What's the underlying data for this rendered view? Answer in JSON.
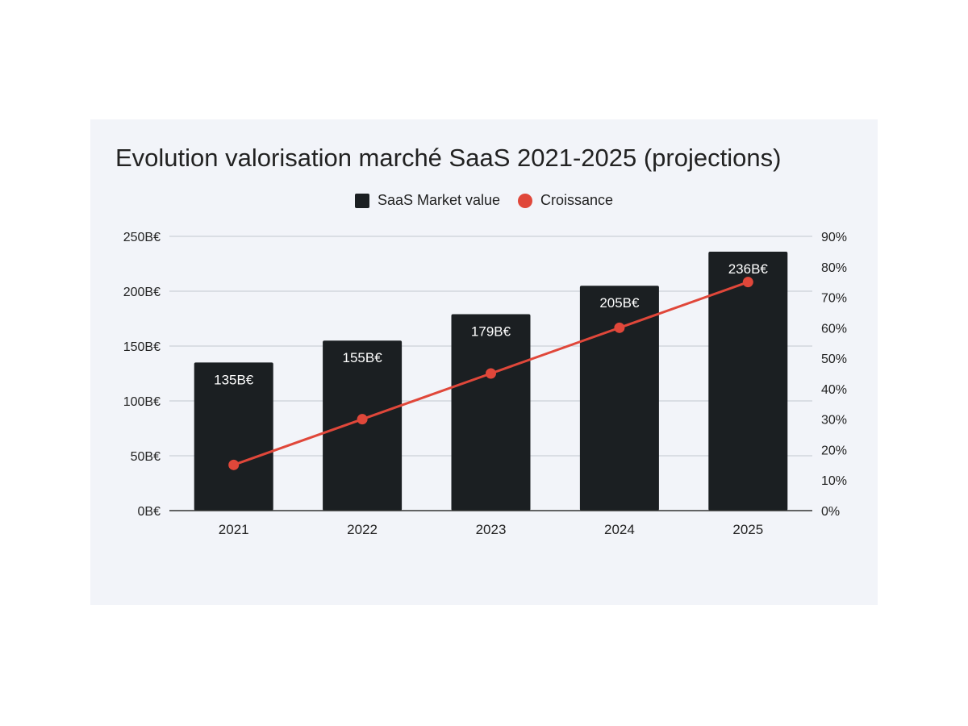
{
  "chart_data": {
    "type": "bar",
    "title": "Evolution valorisation marché SaaS 2021-2025 (projections)",
    "categories": [
      "2021",
      "2022",
      "2023",
      "2024",
      "2025"
    ],
    "series": [
      {
        "name": "SaaS Market value",
        "type": "bar",
        "axis": "left",
        "values": [
          135,
          155,
          179,
          205,
          236
        ],
        "data_labels": [
          "135B€",
          "155B€",
          "179B€",
          "205B€",
          "236B€"
        ],
        "color": "#1b1f22"
      },
      {
        "name": "Croissance",
        "type": "line",
        "axis": "right",
        "values": [
          15,
          30,
          45,
          60,
          75
        ],
        "color": "#e0473a"
      }
    ],
    "y_left": {
      "ylim": [
        0,
        250
      ],
      "ticks": [
        0,
        50,
        100,
        150,
        200,
        250
      ],
      "tick_labels": [
        "0B€",
        "50B€",
        "100B€",
        "150B€",
        "200B€",
        "250B€"
      ]
    },
    "y_right": {
      "ylim": [
        0,
        90
      ],
      "ticks": [
        0,
        10,
        20,
        30,
        40,
        50,
        60,
        70,
        80,
        90
      ],
      "tick_labels": [
        "0%",
        "10%",
        "20%",
        "30%",
        "40%",
        "50%",
        "60%",
        "70%",
        "80%",
        "90%"
      ]
    },
    "grid": true,
    "legend_position": "top-center"
  }
}
